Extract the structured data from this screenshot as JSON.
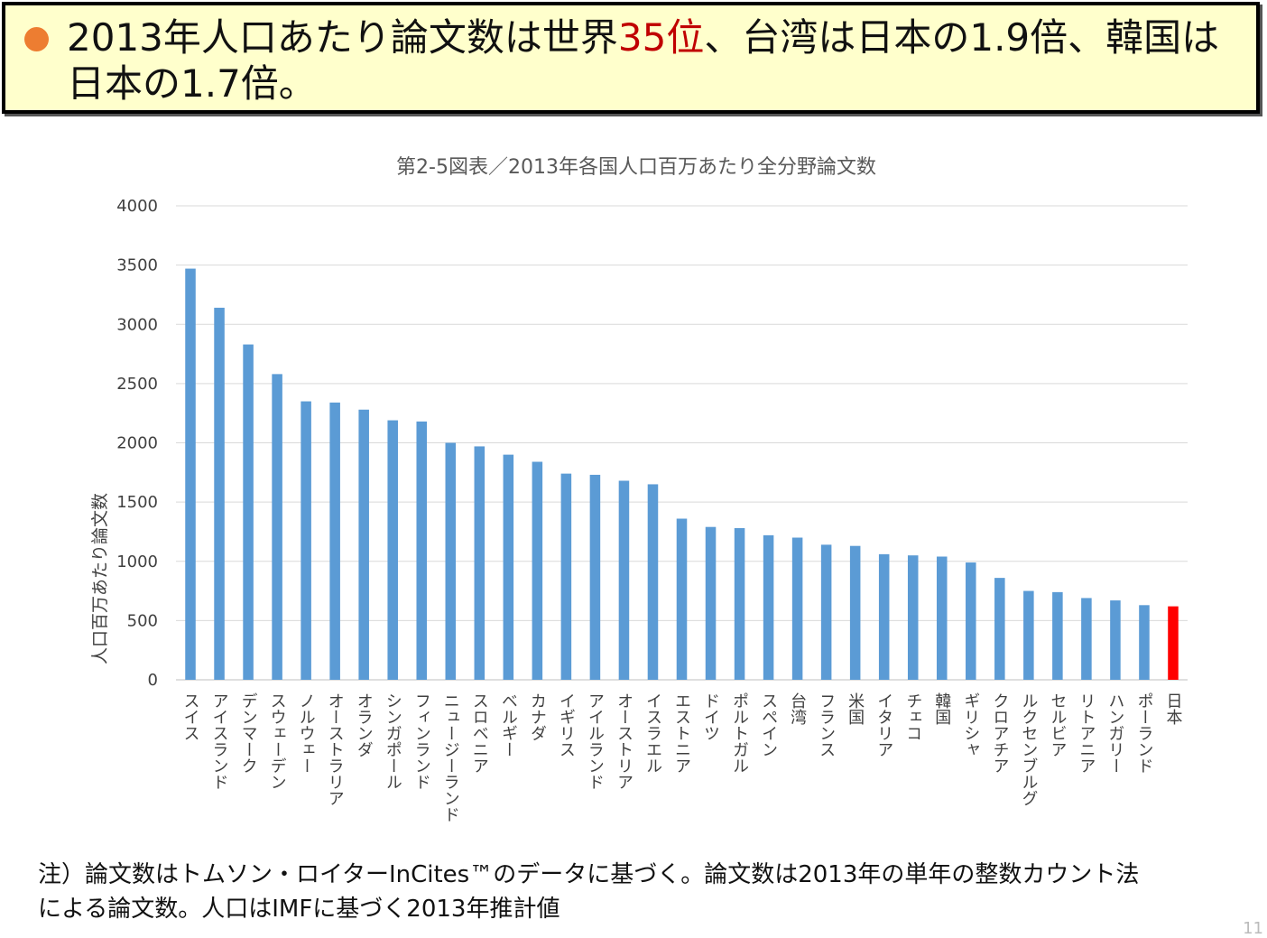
{
  "headline": {
    "part1": "2013年人口あたり論文数は世界",
    "highlight": "35位",
    "part2": "、台湾は日本の1.9倍、韓国は日本の1.7倍。"
  },
  "colors": {
    "headline_bg": "#ffffcc",
    "bullet": "#ed7d31",
    "highlight": "#c00000",
    "bar": "#5b9bd5",
    "bar_highlight": "#ff0000"
  },
  "footnote": {
    "line1": "注）論文数はトムソン・ロイターInCites™のデータに基づく。論文数は2013年の単年の整数カウント法",
    "line2": "による論文数。人口はIMFに基づく2013年推計値"
  },
  "page_number": "11",
  "chart_data": {
    "type": "bar",
    "title": "第2-5図表／2013年各国人口百万あたり全分野論文数",
    "ylabel": "人口百万あたり論文数",
    "xlabel": "",
    "ylim": [
      0,
      4000
    ],
    "yticks": [
      0,
      500,
      1000,
      1500,
      2000,
      2500,
      3000,
      3500,
      4000
    ],
    "grid": true,
    "highlight_category": "日本",
    "categories": [
      "スイス",
      "アイスランド",
      "デンマーク",
      "スウェーデン",
      "ノルウェー",
      "オーストラリア",
      "オランダ",
      "シンガポール",
      "フィンランド",
      "ニュージーランド",
      "スロベニア",
      "ベルギー",
      "カナダ",
      "イギリス",
      "アイルランド",
      "オーストリア",
      "イスラエル",
      "エストニア",
      "ドイツ",
      "ポルトガル",
      "スペイン",
      "台湾",
      "フランス",
      "米国",
      "イタリア",
      "チェコ",
      "韓国",
      "ギリシャ",
      "クロアチア",
      "ルクセンブルグ",
      "セルビア",
      "リトアニア",
      "ハンガリー",
      "ポーランド",
      "日本"
    ],
    "values": [
      3470,
      3140,
      2830,
      2580,
      2350,
      2340,
      2280,
      2190,
      2180,
      2000,
      1970,
      1900,
      1840,
      1740,
      1730,
      1680,
      1650,
      1360,
      1290,
      1280,
      1220,
      1200,
      1140,
      1130,
      1060,
      1050,
      1040,
      990,
      860,
      750,
      740,
      690,
      670,
      630,
      620
    ]
  }
}
